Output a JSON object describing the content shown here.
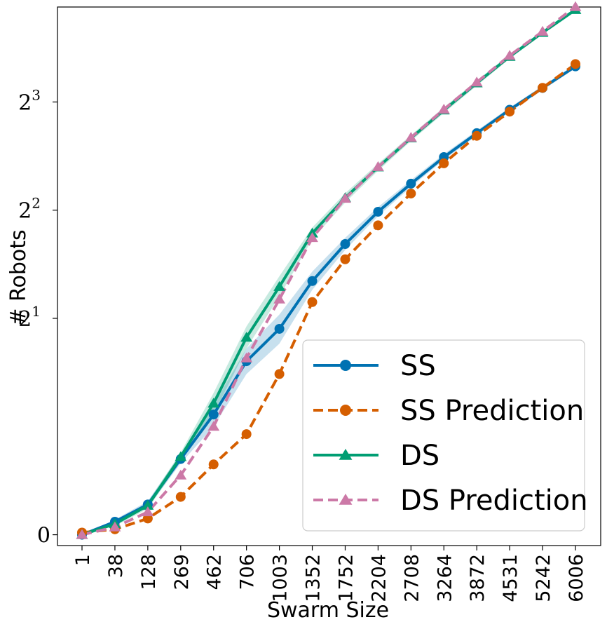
{
  "chart_data": {
    "type": "line",
    "xlabel": "Swarm Size",
    "ylabel": "# Robots",
    "yscale": "symlog2",
    "categories": [
      "1",
      "38",
      "128",
      "269",
      "462",
      "706",
      "1003",
      "1352",
      "1752",
      "2204",
      "2708",
      "3264",
      "3872",
      "4531",
      "5242",
      "6006"
    ],
    "yticks": [
      {
        "value": 0,
        "label": "0"
      },
      {
        "value": 2,
        "label": "2",
        "exp": "1"
      },
      {
        "value": 4,
        "label": "2",
        "exp": "2"
      },
      {
        "value": 8,
        "label": "2",
        "exp": "3"
      }
    ],
    "ylim": [
      -0.1,
      14.7
    ],
    "legend_position": "lower right",
    "grid": false,
    "series": [
      {
        "name": "SS",
        "color": "#0072b2",
        "dash": false,
        "marker": "circle",
        "values": [
          0.0,
          0.12,
          0.28,
          0.7,
          1.08,
          1.52,
          1.87,
          2.54,
          3.22,
          3.96,
          4.74,
          5.62,
          6.55,
          7.61,
          8.75,
          10.05
        ],
        "band_lower": [
          0.0,
          0.1,
          0.25,
          0.66,
          1.0,
          1.4,
          1.7,
          2.4,
          3.1,
          3.85,
          4.64,
          5.52,
          6.45,
          7.5,
          8.63,
          9.93
        ],
        "band_upper": [
          0.0,
          0.14,
          0.31,
          0.75,
          1.15,
          1.65,
          2.05,
          2.7,
          3.35,
          4.08,
          4.85,
          5.73,
          6.66,
          7.72,
          8.87,
          10.17
        ]
      },
      {
        "name": "SS Prediction",
        "color": "#d55e00",
        "dash": true,
        "marker": "circle",
        "values": [
          0.02,
          0.05,
          0.15,
          0.35,
          0.65,
          0.93,
          1.4,
          2.22,
          2.92,
          3.63,
          4.45,
          5.4,
          6.44,
          7.52,
          8.76,
          10.2
        ]
      },
      {
        "name": "DS",
        "color": "#009e73",
        "dash": false,
        "marker": "triangle",
        "values": [
          0.0,
          0.1,
          0.27,
          0.72,
          1.16,
          1.77,
          2.45,
          3.45,
          4.33,
          5.27,
          6.35,
          7.59,
          9.03,
          10.7,
          12.48,
          14.45
        ],
        "band_lower": [
          0.0,
          0.08,
          0.24,
          0.68,
          1.08,
          1.65,
          2.3,
          3.32,
          4.2,
          5.15,
          6.23,
          7.45,
          8.88,
          10.55,
          12.33,
          14.28
        ],
        "band_upper": [
          0.0,
          0.12,
          0.3,
          0.76,
          1.24,
          1.9,
          2.62,
          3.58,
          4.46,
          5.39,
          6.47,
          7.73,
          9.18,
          10.85,
          12.63,
          14.62
        ]
      },
      {
        "name": "DS Prediction",
        "color": "#cc79a7",
        "dash": true,
        "marker": "triangle",
        "values": [
          0.0,
          0.07,
          0.21,
          0.55,
          1.0,
          1.55,
          2.26,
          3.35,
          4.31,
          5.28,
          6.37,
          7.63,
          9.08,
          10.77,
          12.57,
          14.72
        ]
      }
    ]
  }
}
